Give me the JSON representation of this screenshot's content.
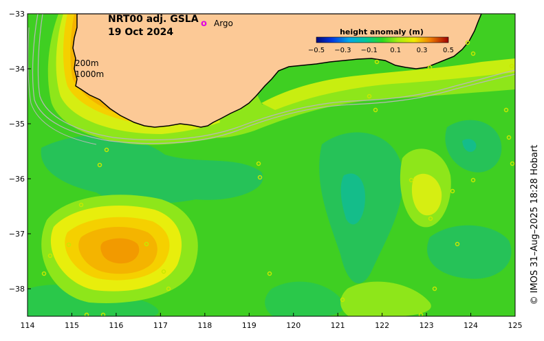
{
  "map": {
    "title_line1": "NRT00 adj. GSLA",
    "title_line2": "19 Oct 2024",
    "argo_marker": "o",
    "argo_label": "Argo",
    "depth_label_200": "200m",
    "depth_label_1000": "1000m",
    "credit": "© IMOS 31–Aug–2025 18:28 Hobart",
    "x_ticks": [
      "114",
      "115",
      "116",
      "117",
      "118",
      "119",
      "120",
      "121",
      "122",
      "123",
      "124",
      "125"
    ],
    "y_ticks": [
      "−33",
      "−34",
      "−35",
      "−36",
      "−37",
      "−38"
    ],
    "lon_range": [
      114,
      125
    ],
    "lat_range": [
      -38.5,
      -33
    ],
    "colorbar": {
      "title": "height anomaly (m)",
      "ticks": [
        "−0.5",
        "−0.3",
        "−0.1",
        "0.1",
        "0.3",
        "0.5"
      ],
      "range": [
        -0.5,
        0.5
      ]
    },
    "colors": {
      "land": "#fcc996",
      "background_anomaly": "#3fcf22",
      "argo": "#e000e0",
      "isobath": "#b8b8b8"
    }
  }
}
